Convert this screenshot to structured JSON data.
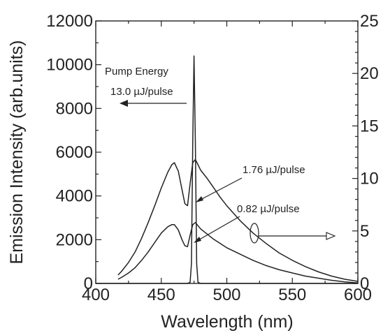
{
  "chart_data": {
    "type": "line",
    "title": "",
    "xlabel": "Wavelength (nm)",
    "ylabel": "Emission Intensity (arb.units)",
    "xlim": [
      400,
      600
    ],
    "ylim": [
      0,
      12000
    ],
    "y2lim": [
      0,
      25
    ],
    "x_ticks": [
      "400",
      "450",
      "500",
      "550",
      "600"
    ],
    "y_ticks": [
      "0",
      "2000",
      "4000",
      "6000",
      "8000",
      "10000",
      "12000"
    ],
    "y2_ticks": [
      "0",
      "5",
      "10",
      "15",
      "20",
      "25"
    ],
    "series": [
      {
        "label": "13.0 µJ/pulse",
        "axis": "left",
        "x": [
          400,
          470,
          472,
          473,
          474,
          475,
          476,
          477,
          478,
          480,
          600
        ],
        "y": [
          0,
          0,
          50,
          900,
          6500,
          10400,
          6500,
          900,
          50,
          0,
          0
        ]
      },
      {
        "label": "1.76 µJ/pulse",
        "axis": "right",
        "x": [
          417,
          420,
          425,
          430,
          435,
          440,
          445,
          450,
          455,
          458,
          460,
          463,
          466,
          468,
          470,
          472,
          474,
          476,
          478,
          480,
          485,
          490,
          495,
          500,
          505,
          510,
          515,
          520,
          525,
          530,
          540,
          550,
          560,
          570,
          580,
          590,
          600
        ],
        "y": [
          0.8,
          1.2,
          2.0,
          3.0,
          4.3,
          5.8,
          7.4,
          9.1,
          10.6,
          11.3,
          11.5,
          10.7,
          8.8,
          7.6,
          7.4,
          9.5,
          11.5,
          11.8,
          11.3,
          10.8,
          10.0,
          9.1,
          8.2,
          7.4,
          6.7,
          6.0,
          5.4,
          4.8,
          4.3,
          3.8,
          2.9,
          2.2,
          1.6,
          1.1,
          0.7,
          0.4,
          0.2
        ]
      },
      {
        "label": "0.82 µJ/pulse",
        "axis": "right",
        "x": [
          417,
          420,
          425,
          430,
          435,
          440,
          445,
          450,
          455,
          458,
          460,
          463,
          466,
          468,
          470,
          472,
          474,
          476,
          478,
          480,
          485,
          490,
          495,
          500,
          505,
          510,
          515,
          520,
          525,
          530,
          540,
          550,
          560,
          570,
          580,
          590,
          600
        ],
        "y": [
          0.4,
          0.6,
          1.0,
          1.5,
          2.2,
          3.0,
          3.9,
          4.8,
          5.4,
          5.6,
          5.6,
          5.1,
          4.1,
          3.6,
          3.5,
          4.6,
          5.6,
          5.8,
          5.5,
          5.2,
          4.7,
          4.2,
          3.8,
          3.4,
          3.1,
          2.8,
          2.5,
          2.2,
          1.95,
          1.7,
          1.3,
          1.0,
          0.7,
          0.5,
          0.3,
          0.15,
          0.05
        ]
      }
    ],
    "annotations": {
      "pump_energy_title": "Pump Energy",
      "label_13": "13.0 µJ/pulse",
      "label_176": "1.76 µJ/pulse",
      "label_082": "0.82 µJ/pulse"
    }
  }
}
